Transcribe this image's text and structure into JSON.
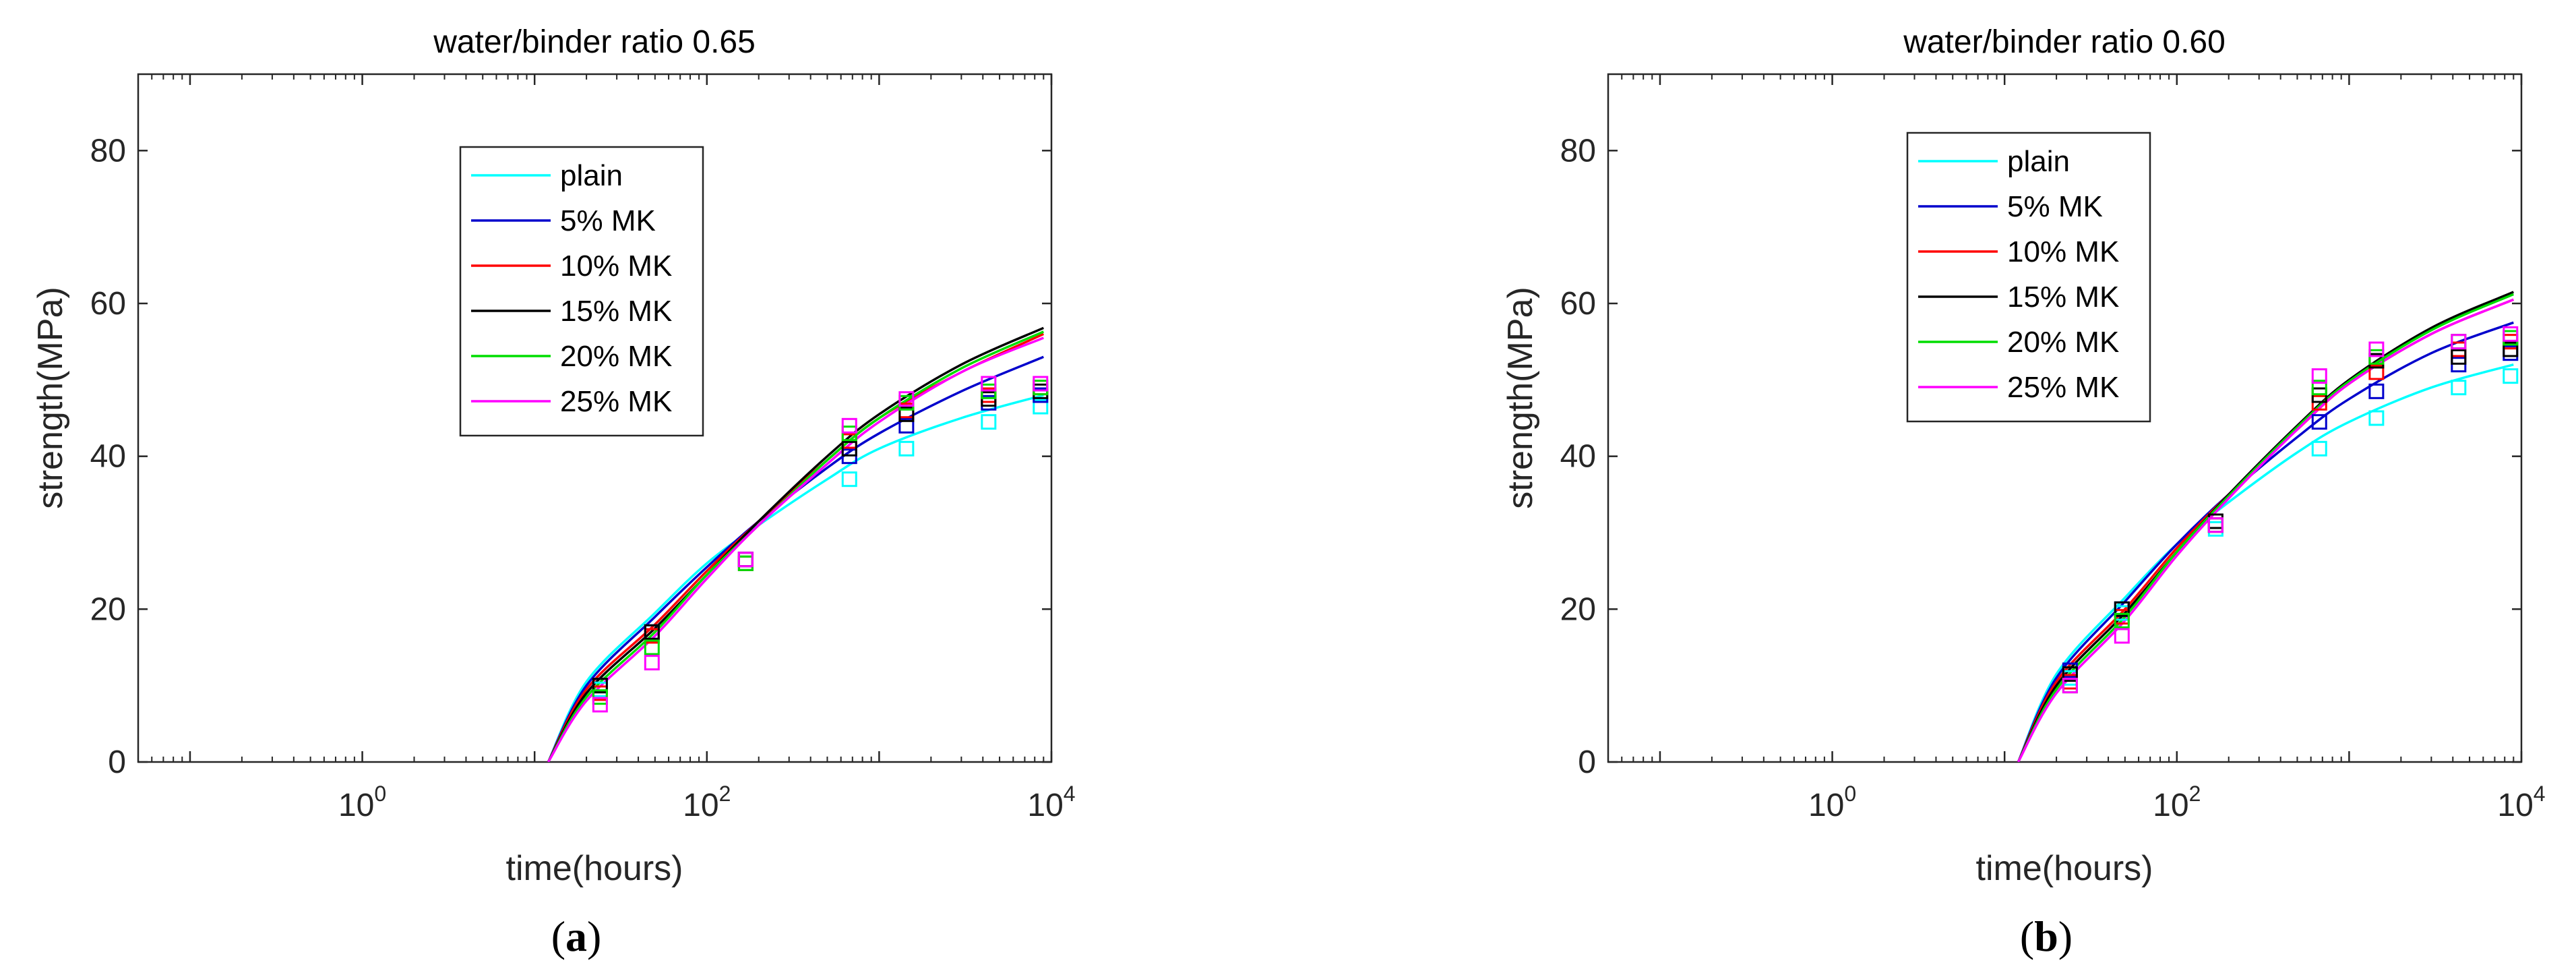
{
  "chart_data": [
    {
      "type": "scatter",
      "title": "water/binder ratio 0.65",
      "caption": "a",
      "xlabel": "time(hours)",
      "ylabel": "strength(MPa)",
      "xscale": "log",
      "xlim": [
        0.05,
        10000
      ],
      "ylim": [
        0,
        90
      ],
      "xticks": [
        1,
        100,
        10000
      ],
      "xtick_labels": [
        {
          "base": "10",
          "exp": "0"
        },
        {
          "base": "10",
          "exp": "2"
        },
        {
          "base": "10",
          "exp": "4"
        }
      ],
      "yticks": [
        0,
        20,
        40,
        60,
        80
      ],
      "grid": false,
      "legend_position": "top-center",
      "fit_curves": [
        {
          "name": "plain",
          "color": "#00ffff",
          "x": [
            12,
            20,
            50,
            100,
            200,
            500,
            1000,
            3000,
            9000
          ],
          "y": [
            0,
            10.5,
            19.5,
            26,
            31,
            37,
            41,
            45,
            48
          ]
        },
        {
          "name": "5% MK",
          "color": "#0000cc",
          "x": [
            12,
            20,
            50,
            100,
            200,
            500,
            1000,
            3000,
            9000
          ],
          "y": [
            0,
            10,
            19,
            25.5,
            31.5,
            38.5,
            43,
            48.5,
            53
          ]
        },
        {
          "name": "10% MK",
          "color": "#ff0000",
          "x": [
            12,
            20,
            50,
            100,
            200,
            500,
            1000,
            3000,
            9000
          ],
          "y": [
            0,
            9.5,
            18,
            25,
            31.5,
            39.5,
            45,
            51,
            56
          ]
        },
        {
          "name": "15% MK",
          "color": "#000000",
          "x": [
            12,
            20,
            50,
            100,
            200,
            500,
            1000,
            3000,
            9000
          ],
          "y": [
            0,
            9,
            17.5,
            24.5,
            31.5,
            40,
            45.5,
            52,
            56.8
          ]
        },
        {
          "name": "20% MK",
          "color": "#00dd00",
          "x": [
            12,
            20,
            50,
            100,
            200,
            500,
            1000,
            3000,
            9000
          ],
          "y": [
            0,
            8.5,
            17,
            24.5,
            31,
            39.5,
            45,
            51.5,
            56.3
          ]
        },
        {
          "name": "25% MK",
          "color": "#ff00ff",
          "x": [
            12,
            20,
            50,
            100,
            200,
            500,
            1000,
            3000,
            9000
          ],
          "y": [
            0,
            8,
            16.5,
            24,
            31,
            39,
            44.5,
            51,
            55.5
          ]
        }
      ],
      "measured": [
        {
          "name": "plain",
          "color": "#00ffff",
          "x": [
            24,
            48,
            168,
            672,
            1440,
            4320,
            8640
          ],
          "y": [
            9.5,
            17,
            26,
            37,
            41,
            44.5,
            46.5
          ]
        },
        {
          "name": "5% MK",
          "color": "#0000cc",
          "x": [
            24,
            48,
            168,
            672,
            1440,
            4320,
            8640
          ],
          "y": [
            10,
            17,
            26.5,
            40,
            44,
            47,
            48
          ]
        },
        {
          "name": "10% MK",
          "color": "#ff0000",
          "x": [
            24,
            48,
            168,
            672,
            1440,
            4320,
            8640
          ],
          "y": [
            9,
            16.5,
            26,
            42,
            46,
            48,
            49
          ]
        },
        {
          "name": "15% MK",
          "color": "#000000",
          "x": [
            24,
            48,
            168,
            672,
            1440,
            4320,
            8640
          ],
          "y": [
            10,
            17,
            26.5,
            41,
            45.5,
            47.5,
            48.5
          ]
        },
        {
          "name": "20% MK",
          "color": "#00dd00",
          "x": [
            24,
            48,
            168,
            672,
            1440,
            4320,
            8640
          ],
          "y": [
            8.5,
            15,
            26,
            43,
            47,
            48.5,
            49
          ]
        },
        {
          "name": "25% MK",
          "color": "#ff00ff",
          "x": [
            24,
            48,
            168,
            672,
            1440,
            4320,
            8640
          ],
          "y": [
            7.5,
            13,
            26.5,
            44,
            47.5,
            49.5,
            49.5
          ]
        }
      ]
    },
    {
      "type": "scatter",
      "title": "water/binder ratio 0.60",
      "caption": "b",
      "xlabel": "time(hours)",
      "ylabel": "strength(MPa)",
      "xscale": "log",
      "xlim": [
        0.05,
        10000
      ],
      "ylim": [
        0,
        90
      ],
      "xticks": [
        1,
        100,
        10000
      ],
      "xtick_labels": [
        {
          "base": "10",
          "exp": "0"
        },
        {
          "base": "10",
          "exp": "2"
        },
        {
          "base": "10",
          "exp": "4"
        }
      ],
      "yticks": [
        0,
        20,
        40,
        60,
        80
      ],
      "grid": false,
      "legend_position": "top-center",
      "fit_curves": [
        {
          "name": "plain",
          "color": "#00ffff",
          "x": [
            12,
            20,
            50,
            100,
            200,
            500,
            1000,
            3000,
            9000
          ],
          "y": [
            0,
            11.5,
            21.5,
            28.5,
            34,
            40.5,
            44.5,
            49,
            52
          ]
        },
        {
          "name": "5% MK",
          "color": "#0000cc",
          "x": [
            12,
            20,
            50,
            100,
            200,
            500,
            1000,
            3000,
            9000
          ],
          "y": [
            0,
            11,
            21,
            28.5,
            35,
            42.5,
            47.5,
            53.5,
            57.5
          ]
        },
        {
          "name": "10% MK",
          "color": "#ff0000",
          "x": [
            12,
            20,
            50,
            100,
            200,
            500,
            1000,
            3000,
            9000
          ],
          "y": [
            0,
            10.5,
            20,
            28,
            35,
            43.5,
            49.5,
            56,
            60.5
          ]
        },
        {
          "name": "15% MK",
          "color": "#000000",
          "x": [
            12,
            20,
            50,
            100,
            200,
            500,
            1000,
            3000,
            9000
          ],
          "y": [
            0,
            10,
            19.5,
            27.5,
            35,
            44,
            50,
            56.8,
            61.5
          ]
        },
        {
          "name": "20% MK",
          "color": "#00dd00",
          "x": [
            12,
            20,
            50,
            100,
            200,
            500,
            1000,
            3000,
            9000
          ],
          "y": [
            0,
            9.5,
            19,
            27.5,
            34.8,
            43.8,
            49.8,
            56.5,
            61.2
          ]
        },
        {
          "name": "25% MK",
          "color": "#ff00ff",
          "x": [
            12,
            20,
            50,
            100,
            200,
            500,
            1000,
            3000,
            9000
          ],
          "y": [
            0,
            9,
            18.5,
            27,
            34.5,
            43.5,
            49.5,
            56,
            60.5
          ]
        }
      ],
      "measured": [
        {
          "name": "plain",
          "color": "#00ffff",
          "x": [
            24,
            48,
            168,
            672,
            1440,
            4320,
            8640
          ],
          "y": [
            11,
            19.5,
            30.5,
            41,
            45,
            49,
            50.5
          ]
        },
        {
          "name": "5% MK",
          "color": "#0000cc",
          "x": [
            24,
            48,
            168,
            672,
            1440,
            4320,
            8640
          ],
          "y": [
            12,
            20,
            31,
            44.5,
            48.5,
            52,
            53.5
          ]
        },
        {
          "name": "10% MK",
          "color": "#ff0000",
          "x": [
            24,
            48,
            168,
            672,
            1440,
            4320,
            8640
          ],
          "y": [
            10.5,
            19,
            31,
            47,
            51,
            54,
            55
          ]
        },
        {
          "name": "15% MK",
          "color": "#000000",
          "x": [
            24,
            48,
            168,
            672,
            1440,
            4320,
            8640
          ],
          "y": [
            11.5,
            20,
            31.5,
            48,
            52.5,
            53,
            54
          ]
        },
        {
          "name": "20% MK",
          "color": "#00dd00",
          "x": [
            24,
            48,
            168,
            672,
            1440,
            4320,
            8640
          ],
          "y": [
            10,
            18.5,
            31,
            49,
            53,
            55,
            55.5
          ]
        },
        {
          "name": "25% MK",
          "color": "#ff00ff",
          "x": [
            24,
            48,
            168,
            672,
            1440,
            4320,
            8640
          ],
          "y": [
            10,
            16.5,
            31,
            50.5,
            54,
            55,
            56
          ]
        }
      ]
    }
  ]
}
